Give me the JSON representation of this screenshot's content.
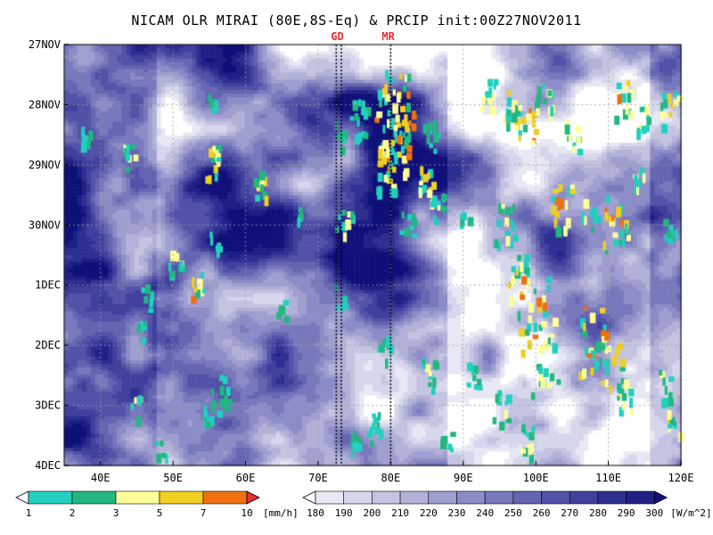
{
  "chart_data": {
    "type": "heatmap",
    "title": "NICAM OLR MIRAI (80E,8S-Eq) & PRCIP init:00Z27NOV2011",
    "x_axis": {
      "range": [
        35,
        120
      ],
      "ticks": [
        40,
        50,
        60,
        70,
        80,
        90,
        100,
        110,
        120
      ],
      "tick_labels": [
        "40E",
        "50E",
        "60E",
        "70E",
        "80E",
        "90E",
        "100E",
        "110E",
        "120E"
      ]
    },
    "y_axis": {
      "direction": "top-to-bottom",
      "range": [
        "27NOV",
        "4DEC"
      ],
      "tick_labels": [
        "27NOV",
        "28NOV",
        "29NOV",
        "30NOV",
        "1DEC",
        "2DEC",
        "3DEC",
        "4DEC"
      ]
    },
    "grid": true,
    "markers": [
      {
        "label": "GD",
        "x": [
          72.5,
          73.2
        ]
      },
      {
        "label": "MR",
        "x": [
          80.0
        ]
      }
    ],
    "olr_colorbar": {
      "unit": "[W/m^2]",
      "levels": [
        180,
        190,
        200,
        210,
        220,
        230,
        240,
        250,
        260,
        270,
        280,
        290,
        300
      ],
      "colors": [
        "#ffffff",
        "#e8e8f4",
        "#d6d6ec",
        "#c4c4e2",
        "#b2b2d9",
        "#9f9fd0",
        "#8c8cc7",
        "#7878bd",
        "#6565b2",
        "#5252a8",
        "#40409d",
        "#2f2f92",
        "#1f1f86",
        "#10107a"
      ]
    },
    "precip_colorbar": {
      "unit": "[mm/h]",
      "levels": [
        1,
        2,
        3,
        5,
        7,
        10
      ],
      "colors": [
        "#20d0c0",
        "#20b880",
        "#ffff99",
        "#f0d020",
        "#f07010",
        "#e03030"
      ]
    }
  }
}
